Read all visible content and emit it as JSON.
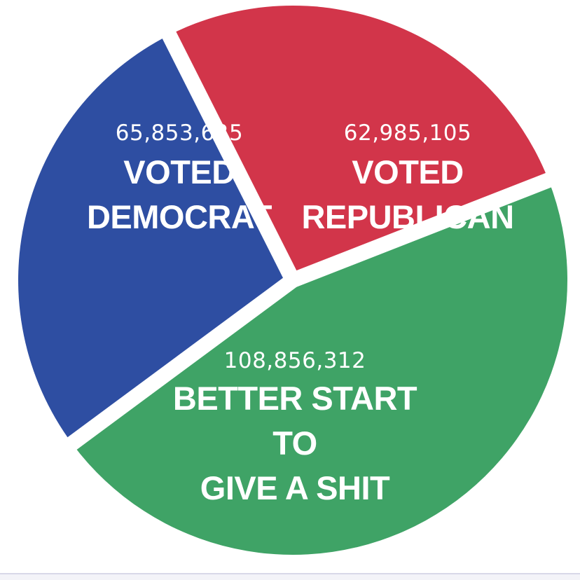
{
  "chart_data": {
    "type": "pie",
    "slices": [
      {
        "value": 65853625,
        "value_label": "65,853,625",
        "label_lines": [
          "VOTED",
          "DEMOCRAT"
        ],
        "color": "#2e4ea2"
      },
      {
        "value": 62985105,
        "value_label": "62,985,105",
        "label_lines": [
          "VOTED",
          "REPUBLICAN"
        ],
        "color": "#d2354a"
      },
      {
        "value": 108856312,
        "value_label": "108,856,312",
        "label_lines": [
          "BETTER START",
          "TO",
          "GIVE A SHIT"
        ],
        "color": "#3fa366"
      }
    ],
    "legend": "none"
  }
}
